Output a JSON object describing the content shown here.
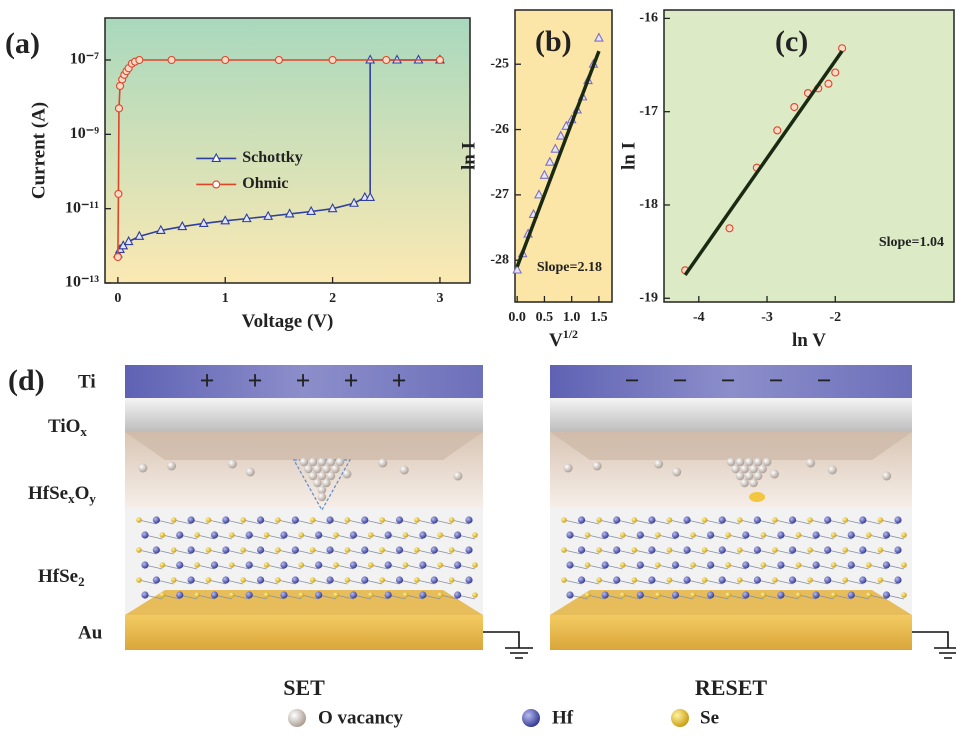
{
  "chart_data": [
    {
      "type": "line",
      "panel_label": "(a)",
      "x_label": "Voltage (V)",
      "y_label": "Current (A)",
      "log_y": true,
      "legend": "center",
      "xlim": [
        -0.12,
        3.28
      ],
      "xticks": [
        0,
        1,
        2,
        3
      ],
      "ylim": [
        1e-13,
        1.35e-06
      ],
      "yticks": [
        {
          "value": 1e-13,
          "label": "10⁻¹³"
        },
        {
          "value": 1e-11,
          "label": "10⁻¹¹"
        },
        {
          "value": 1e-09,
          "label": "10⁻⁹"
        },
        {
          "value": 1e-07,
          "label": "10⁻⁷"
        }
      ],
      "series": [
        {
          "name": "Schottky",
          "color": "#2f3f9f",
          "marker": "triangle",
          "x": [
            0,
            0.02,
            0.05,
            0.1,
            0.2,
            0.4,
            0.6,
            0.8,
            1.0,
            1.2,
            1.4,
            1.6,
            1.8,
            2.0,
            2.2,
            2.3,
            2.35,
            2.35,
            2.6,
            2.8,
            3.0
          ],
          "values": [
            6e-13,
            8e-13,
            1e-12,
            1.3e-12,
            1.8e-12,
            2.6e-12,
            3.3e-12,
            4e-12,
            4.7e-12,
            5.4e-12,
            6.2e-12,
            7.2e-12,
            8.4e-12,
            1e-11,
            1.4e-11,
            2e-11,
            2e-11,
            1e-07,
            1e-07,
            1e-07,
            1e-07
          ]
        },
        {
          "name": "Ohmic",
          "color": "#e0452a",
          "marker": "circle",
          "x": [
            0,
            0.005,
            0.01,
            0.02,
            0.04,
            0.06,
            0.08,
            0.1,
            0.13,
            0.16,
            0.2,
            0.5,
            1.0,
            1.5,
            2.0,
            2.5,
            3.0
          ],
          "values": [
            5e-13,
            2.5e-11,
            5e-09,
            2e-08,
            3e-08,
            4e-08,
            5e-08,
            6e-08,
            8e-08,
            9e-08,
            1e-07,
            1e-07,
            1e-07,
            1e-07,
            1e-07,
            1e-07,
            1e-07
          ]
        }
      ]
    },
    {
      "type": "scatter",
      "panel_label": "(b)",
      "x_label": "V",
      "x_label_superscript": "1/2",
      "y_label": "ln I",
      "annotation": "Slope=2.18",
      "xlim": [
        -0.04,
        1.74
      ],
      "xticks": [
        {
          "value": 0,
          "label": "0.0"
        },
        0.5,
        {
          "value": 1,
          "label": "1.0"
        },
        1.5
      ],
      "ylim": [
        -28.64,
        -24.17
      ],
      "yticks": [
        -25,
        -26,
        -27,
        -28
      ],
      "series": [
        {
          "color": "#7f6fc0",
          "marker": "triangle",
          "x": [
            0,
            0.1,
            0.2,
            0.3,
            0.4,
            0.5,
            0.6,
            0.7,
            0.8,
            0.9,
            1.0,
            1.1,
            1.2,
            1.3,
            1.4,
            1.5
          ],
          "values": [
            -28.15,
            -27.9,
            -27.6,
            -27.3,
            -27.0,
            -26.7,
            -26.5,
            -26.3,
            -26.1,
            -25.95,
            -25.85,
            -25.7,
            -25.5,
            -25.25,
            -25.0,
            -24.6
          ]
        }
      ],
      "fit_line": {
        "color": "#1a2a12",
        "x": [
          0,
          1.5
        ],
        "values": [
          -28.1,
          -24.8
        ]
      }
    },
    {
      "type": "scatter",
      "panel_label": "(c)",
      "x_label": "ln V",
      "y_label": "ln I",
      "annotation": "Slope=1.04",
      "xlim": [
        -4.51,
        -0.26
      ],
      "xticks": [
        -4,
        -3,
        -2
      ],
      "ylim": [
        -19.04,
        -15.91
      ],
      "yticks": [
        -16,
        -17,
        -18,
        -19
      ],
      "series": [
        {
          "color": "#e0452a",
          "marker": "circle",
          "x": [
            -4.2,
            -3.55,
            -3.15,
            -2.85,
            -2.6,
            -2.4,
            -2.25,
            -2.1,
            -2.0,
            -1.9
          ],
          "values": [
            -18.7,
            -18.25,
            -17.6,
            -17.2,
            -16.95,
            -16.8,
            -16.75,
            -16.7,
            -16.58,
            -16.32
          ]
        }
      ],
      "fit_line": {
        "color": "#1a2a12",
        "x": [
          -4.2,
          -1.9
        ],
        "values": [
          -18.75,
          -16.35
        ]
      }
    }
  ],
  "diagram": {
    "panel_label": "(d)",
    "layers": [
      "Ti",
      [
        "TiO",
        "x"
      ],
      [
        "HfSe",
        "x",
        "O",
        "y"
      ],
      [
        "HfSe",
        "2"
      ],
      "Au"
    ],
    "devices": [
      {
        "caption": "SET",
        "signs": [
          "+",
          "+",
          "+",
          "+",
          "+"
        ]
      },
      {
        "caption": "RESET",
        "signs": [
          "−",
          "−",
          "−",
          "−",
          "−"
        ]
      }
    ],
    "legend": [
      "O vacancy",
      "Hf",
      "Se"
    ]
  }
}
